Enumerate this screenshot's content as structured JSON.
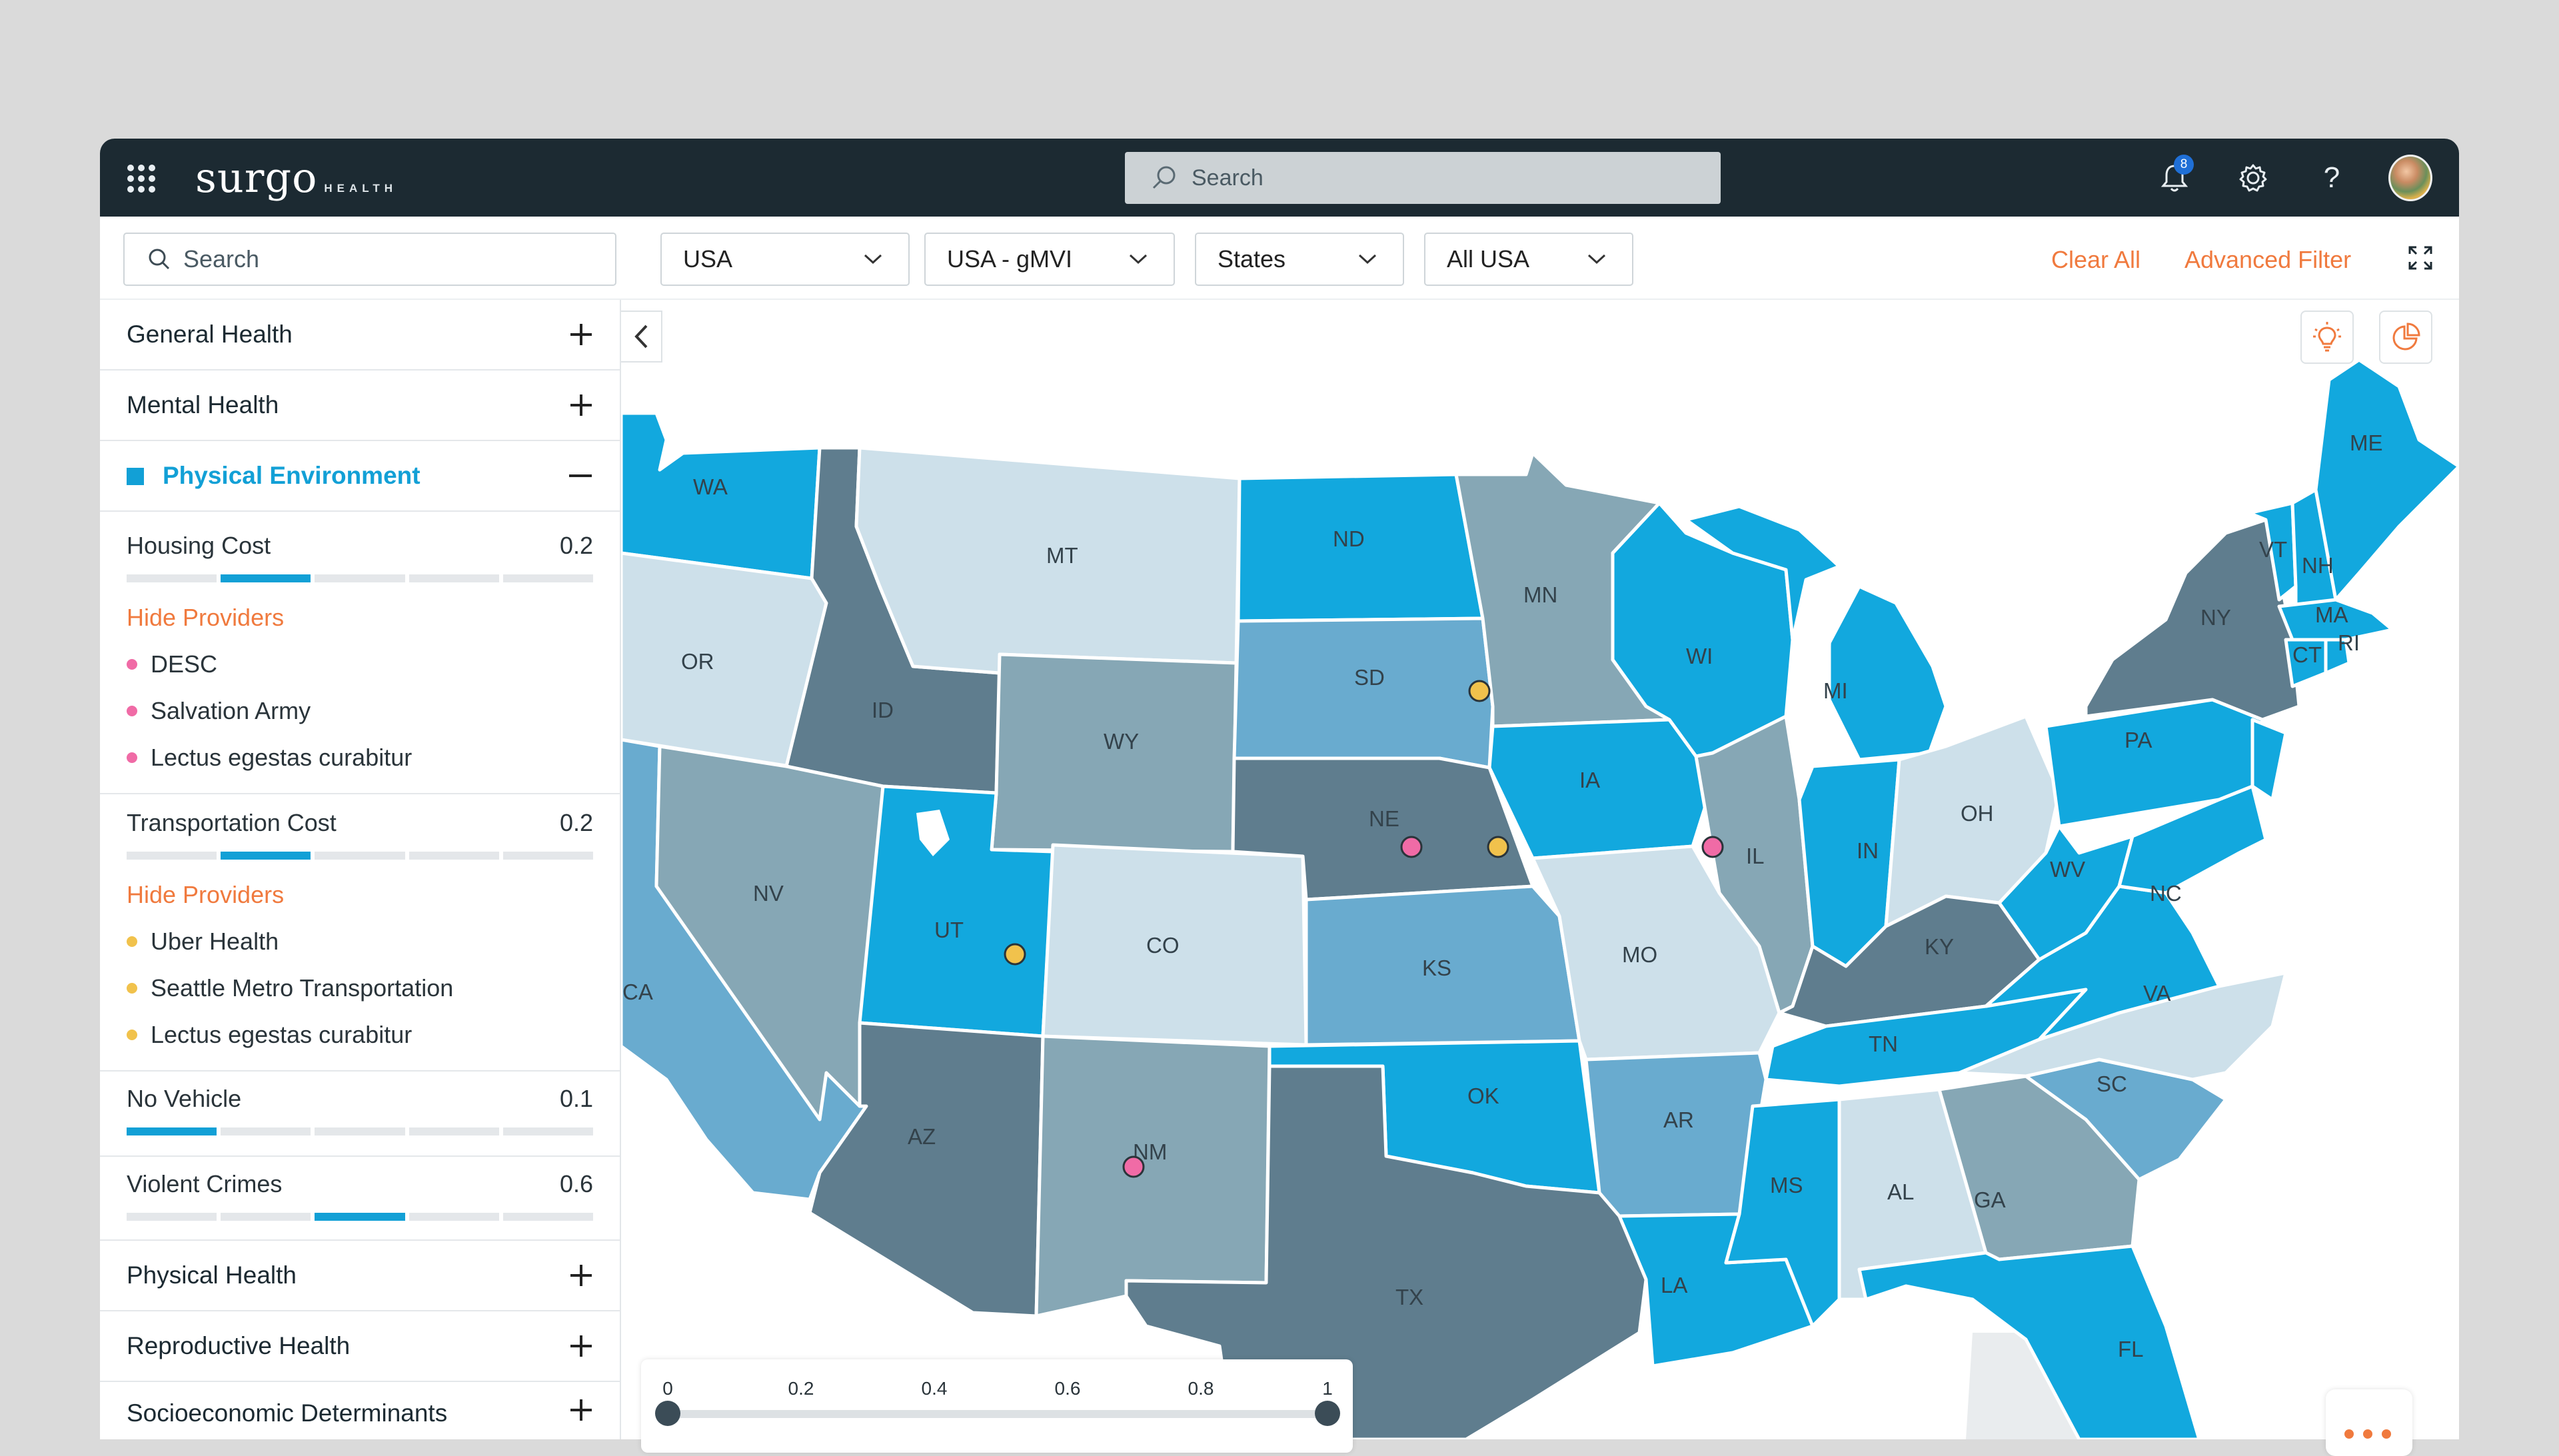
{
  "header": {
    "logo_main": "surgo",
    "logo_sub": "HEALTH",
    "search_placeholder": "Search",
    "notifications_count": "8",
    "help_glyph": "?"
  },
  "filters": {
    "search_placeholder": "Search",
    "dropdowns": [
      "USA",
      "USA - gMVI",
      "States",
      "All USA"
    ],
    "clear_all": "Clear All",
    "advanced_filter": "Advanced Filter"
  },
  "sidebar": {
    "categories": {
      "general_health": "General Health",
      "mental_health": "Mental Health",
      "physical_environment": "Physical Environment",
      "physical_health": "Physical Health",
      "reproductive_health": "Reproductive Health",
      "socioeconomic": "Socioeconomic Determinants"
    },
    "metrics": {
      "housing": {
        "label": "Housing Cost",
        "value": "0.2",
        "segment": 2
      },
      "transport": {
        "label": "Transportation Cost",
        "value": "0.2",
        "segment": 2
      },
      "vehicle": {
        "label": "No Vehicle",
        "value": "0.1",
        "segment": 1
      },
      "crimes": {
        "label": "Violent Crimes",
        "value": "0.6",
        "segment": 3
      }
    },
    "hide_providers": "Hide Providers",
    "providers_pink": [
      "DESC",
      "Salvation Army",
      "Lectus egestas curabitur"
    ],
    "providers_yellow": [
      "Uber Health",
      "Seattle Metro Transportation",
      "Lectus egestas curabitur"
    ]
  },
  "map": {
    "colors": {
      "bright": "#12a8de",
      "light": "#cde0ea",
      "mid": "#86a7b5",
      "steel": "#69abcf",
      "dark": "#5f7d8e",
      "pink": "#f06ba6",
      "yellow": "#f1c24c",
      "accent": "#f07a3e"
    },
    "state_labels": [
      "WA",
      "OR",
      "CA",
      "ID",
      "NV",
      "MT",
      "WY",
      "UT",
      "CO",
      "AZ",
      "NM",
      "ND",
      "SD",
      "NE",
      "KS",
      "OK",
      "TX",
      "MN",
      "IA",
      "MO",
      "AR",
      "LA",
      "WI",
      "IL",
      "MI",
      "IN",
      "OH",
      "KY",
      "TN",
      "MS",
      "AL",
      "GA",
      "FL",
      "SC",
      "NC",
      "VA",
      "WV",
      "PA",
      "NY",
      "VT",
      "NH",
      "ME",
      "MA",
      "CT",
      "RI"
    ]
  },
  "legend": {
    "ticks": [
      "0",
      "0.2",
      "0.4",
      "0.6",
      "0.8",
      "1"
    ],
    "range": [
      0,
      1
    ]
  },
  "icons": [
    "apps-grid-icon",
    "search-icon",
    "bell-icon",
    "gear-icon",
    "help-icon",
    "chevron-down-icon",
    "expand-icon",
    "chevron-left-icon",
    "lightbulb-icon",
    "pie-chart-icon",
    "more-dots-icon"
  ]
}
